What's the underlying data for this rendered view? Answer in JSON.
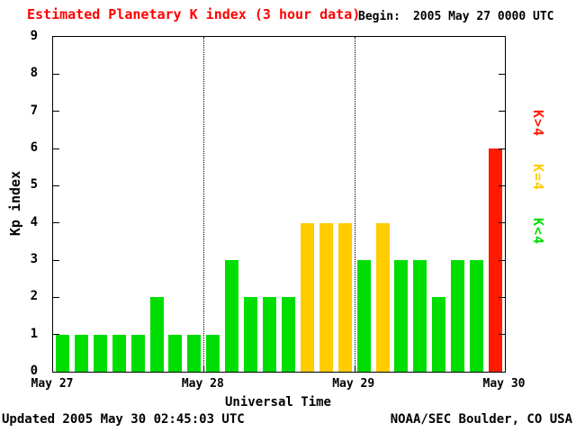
{
  "header": {
    "title": "Estimated Planetary K index (3 hour data)",
    "begin_label": "Begin:",
    "begin_value": "2005 May 27 0000 UTC"
  },
  "footer": {
    "updated": "Updated 2005 May 30 02:45:03 UTC",
    "source": "NOAA/SEC Boulder, CO USA"
  },
  "chart_data": {
    "type": "bar",
    "title": "Estimated Planetary K index (3 hour data)",
    "xlabel": "Universal Time",
    "ylabel": "Kp index",
    "ylim": [
      0,
      9
    ],
    "yticks": [
      0,
      1,
      2,
      3,
      4,
      5,
      6,
      7,
      8,
      9
    ],
    "x_day_labels": [
      "May 27",
      "May 28",
      "May 29",
      "May 30"
    ],
    "hours_per_bar": 3,
    "values": [
      1,
      1,
      1,
      1,
      1,
      2,
      1,
      1,
      1,
      3,
      2,
      2,
      2,
      4,
      4,
      4,
      3,
      4,
      3,
      3,
      2,
      3,
      3,
      6
    ],
    "colors": {
      "low": "#00dd00",
      "mid": "#ffcc00",
      "high": "#ff1a00"
    },
    "color_rule": "green when K<4, yellow when K=4, red when K>4",
    "legend": [
      {
        "label": "K>4",
        "color": "#ff1a00"
      },
      {
        "label": "K=4",
        "color": "#ffcc00"
      },
      {
        "label": "K<4",
        "color": "#00dd00"
      }
    ],
    "grid": "dotted vertical lines at day boundaries",
    "legend_position": "right, rotated 90deg"
  }
}
